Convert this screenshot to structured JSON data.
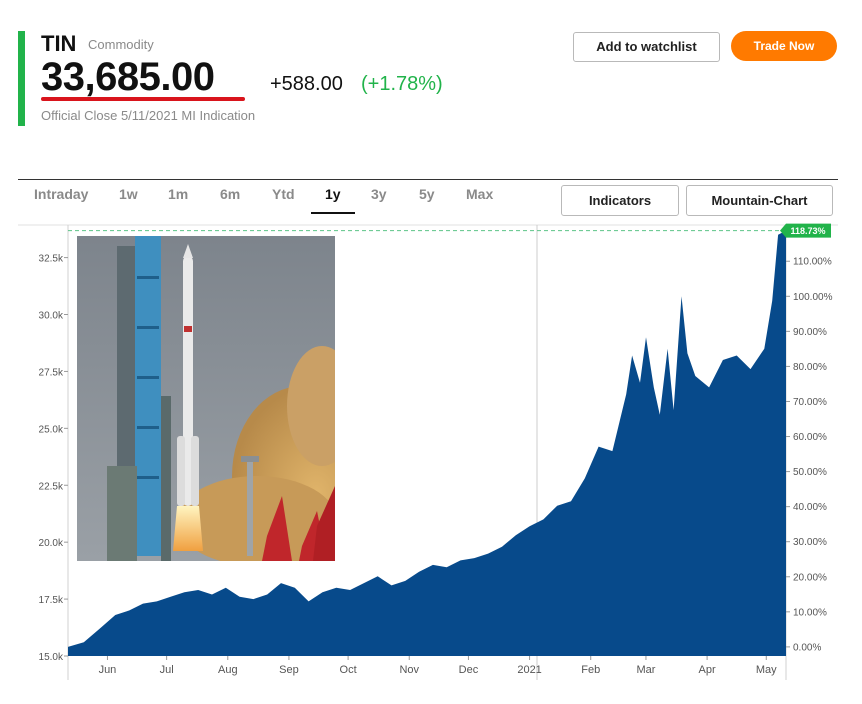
{
  "quote": {
    "symbol": "TIN",
    "category": "Commodity",
    "price": "33,685.00",
    "change": "+588.00",
    "change_pct": "(+1.78%)",
    "close_info": "Official Close 5/11/2021 MI Indication"
  },
  "actions": {
    "watchlist": "Add to watchlist",
    "trade": "Trade Now"
  },
  "ranges": {
    "tabs": [
      "Intraday",
      "1w",
      "1m",
      "6m",
      "Ytd",
      "1y",
      "3y",
      "5y",
      "Max"
    ],
    "active": "1y"
  },
  "tools": {
    "indicators": "Indicators",
    "chart_type": "Mountain-Chart"
  },
  "colors": {
    "accent": "#21b34a",
    "trade": "#ff7a00",
    "area": "#074a8b",
    "underline": "#d9141c"
  },
  "chart_data": {
    "type": "area",
    "x_ticks": [
      "Jun",
      "Jul",
      "Aug",
      "Sep",
      "Oct",
      "Nov",
      "Dec",
      "2021",
      "Feb",
      "Mar",
      "Apr",
      "May"
    ],
    "y_ticks_left": [
      "32.5k",
      "30.0k",
      "27.5k",
      "25.0k",
      "22.5k",
      "20.0k",
      "17.5k",
      "15.0k"
    ],
    "y_ticks_right": [
      "110.00%",
      "100.00%",
      "90.00%",
      "80.00%",
      "70.00%",
      "60.00%",
      "50.00%",
      "40.00%",
      "30.00%",
      "20.00%",
      "10.00%",
      "0.00%"
    ],
    "ylim": [
      15000,
      33800
    ],
    "last_marker": "118.73%",
    "series": [
      {
        "x": [
          "2020-05-12",
          "2020-05-20",
          "2020-05-28",
          "2020-06-05",
          "2020-06-12",
          "2020-06-19",
          "2020-06-26",
          "2020-07-03",
          "2020-07-10",
          "2020-07-17",
          "2020-07-24",
          "2020-07-31",
          "2020-08-07",
          "2020-08-14",
          "2020-08-21",
          "2020-08-28",
          "2020-09-04",
          "2020-09-11",
          "2020-09-18",
          "2020-09-25",
          "2020-10-02",
          "2020-10-09",
          "2020-10-16",
          "2020-10-23",
          "2020-10-30",
          "2020-11-06",
          "2020-11-13",
          "2020-11-20",
          "2020-11-27",
          "2020-12-04",
          "2020-12-11",
          "2020-12-18",
          "2020-12-25",
          "2021-01-01",
          "2021-01-08",
          "2021-01-15",
          "2021-01-22",
          "2021-01-29",
          "2021-02-05",
          "2021-02-12",
          "2021-02-19",
          "2021-02-22",
          "2021-02-26",
          "2021-03-01",
          "2021-03-05",
          "2021-03-08",
          "2021-03-12",
          "2021-03-15",
          "2021-03-19",
          "2021-03-22",
          "2021-03-26",
          "2021-04-02",
          "2021-04-09",
          "2021-04-16",
          "2021-04-23",
          "2021-04-30",
          "2021-05-04",
          "2021-05-07",
          "2021-05-11"
        ],
        "values": [
          15400,
          15600,
          16200,
          16800,
          17000,
          17300,
          17400,
          17600,
          17800,
          17900,
          17700,
          18000,
          17600,
          17500,
          17700,
          18200,
          18000,
          17400,
          17800,
          18000,
          17900,
          18200,
          18500,
          18100,
          18300,
          18700,
          19000,
          18900,
          19200,
          19300,
          19500,
          19800,
          20300,
          20700,
          21000,
          21600,
          21800,
          22800,
          24200,
          24000,
          26500,
          28200,
          27000,
          29000,
          26800,
          25600,
          28500,
          25800,
          30800,
          28300,
          27300,
          26800,
          28000,
          28200,
          27600,
          28500,
          30600,
          33500,
          33685
        ]
      }
    ]
  }
}
